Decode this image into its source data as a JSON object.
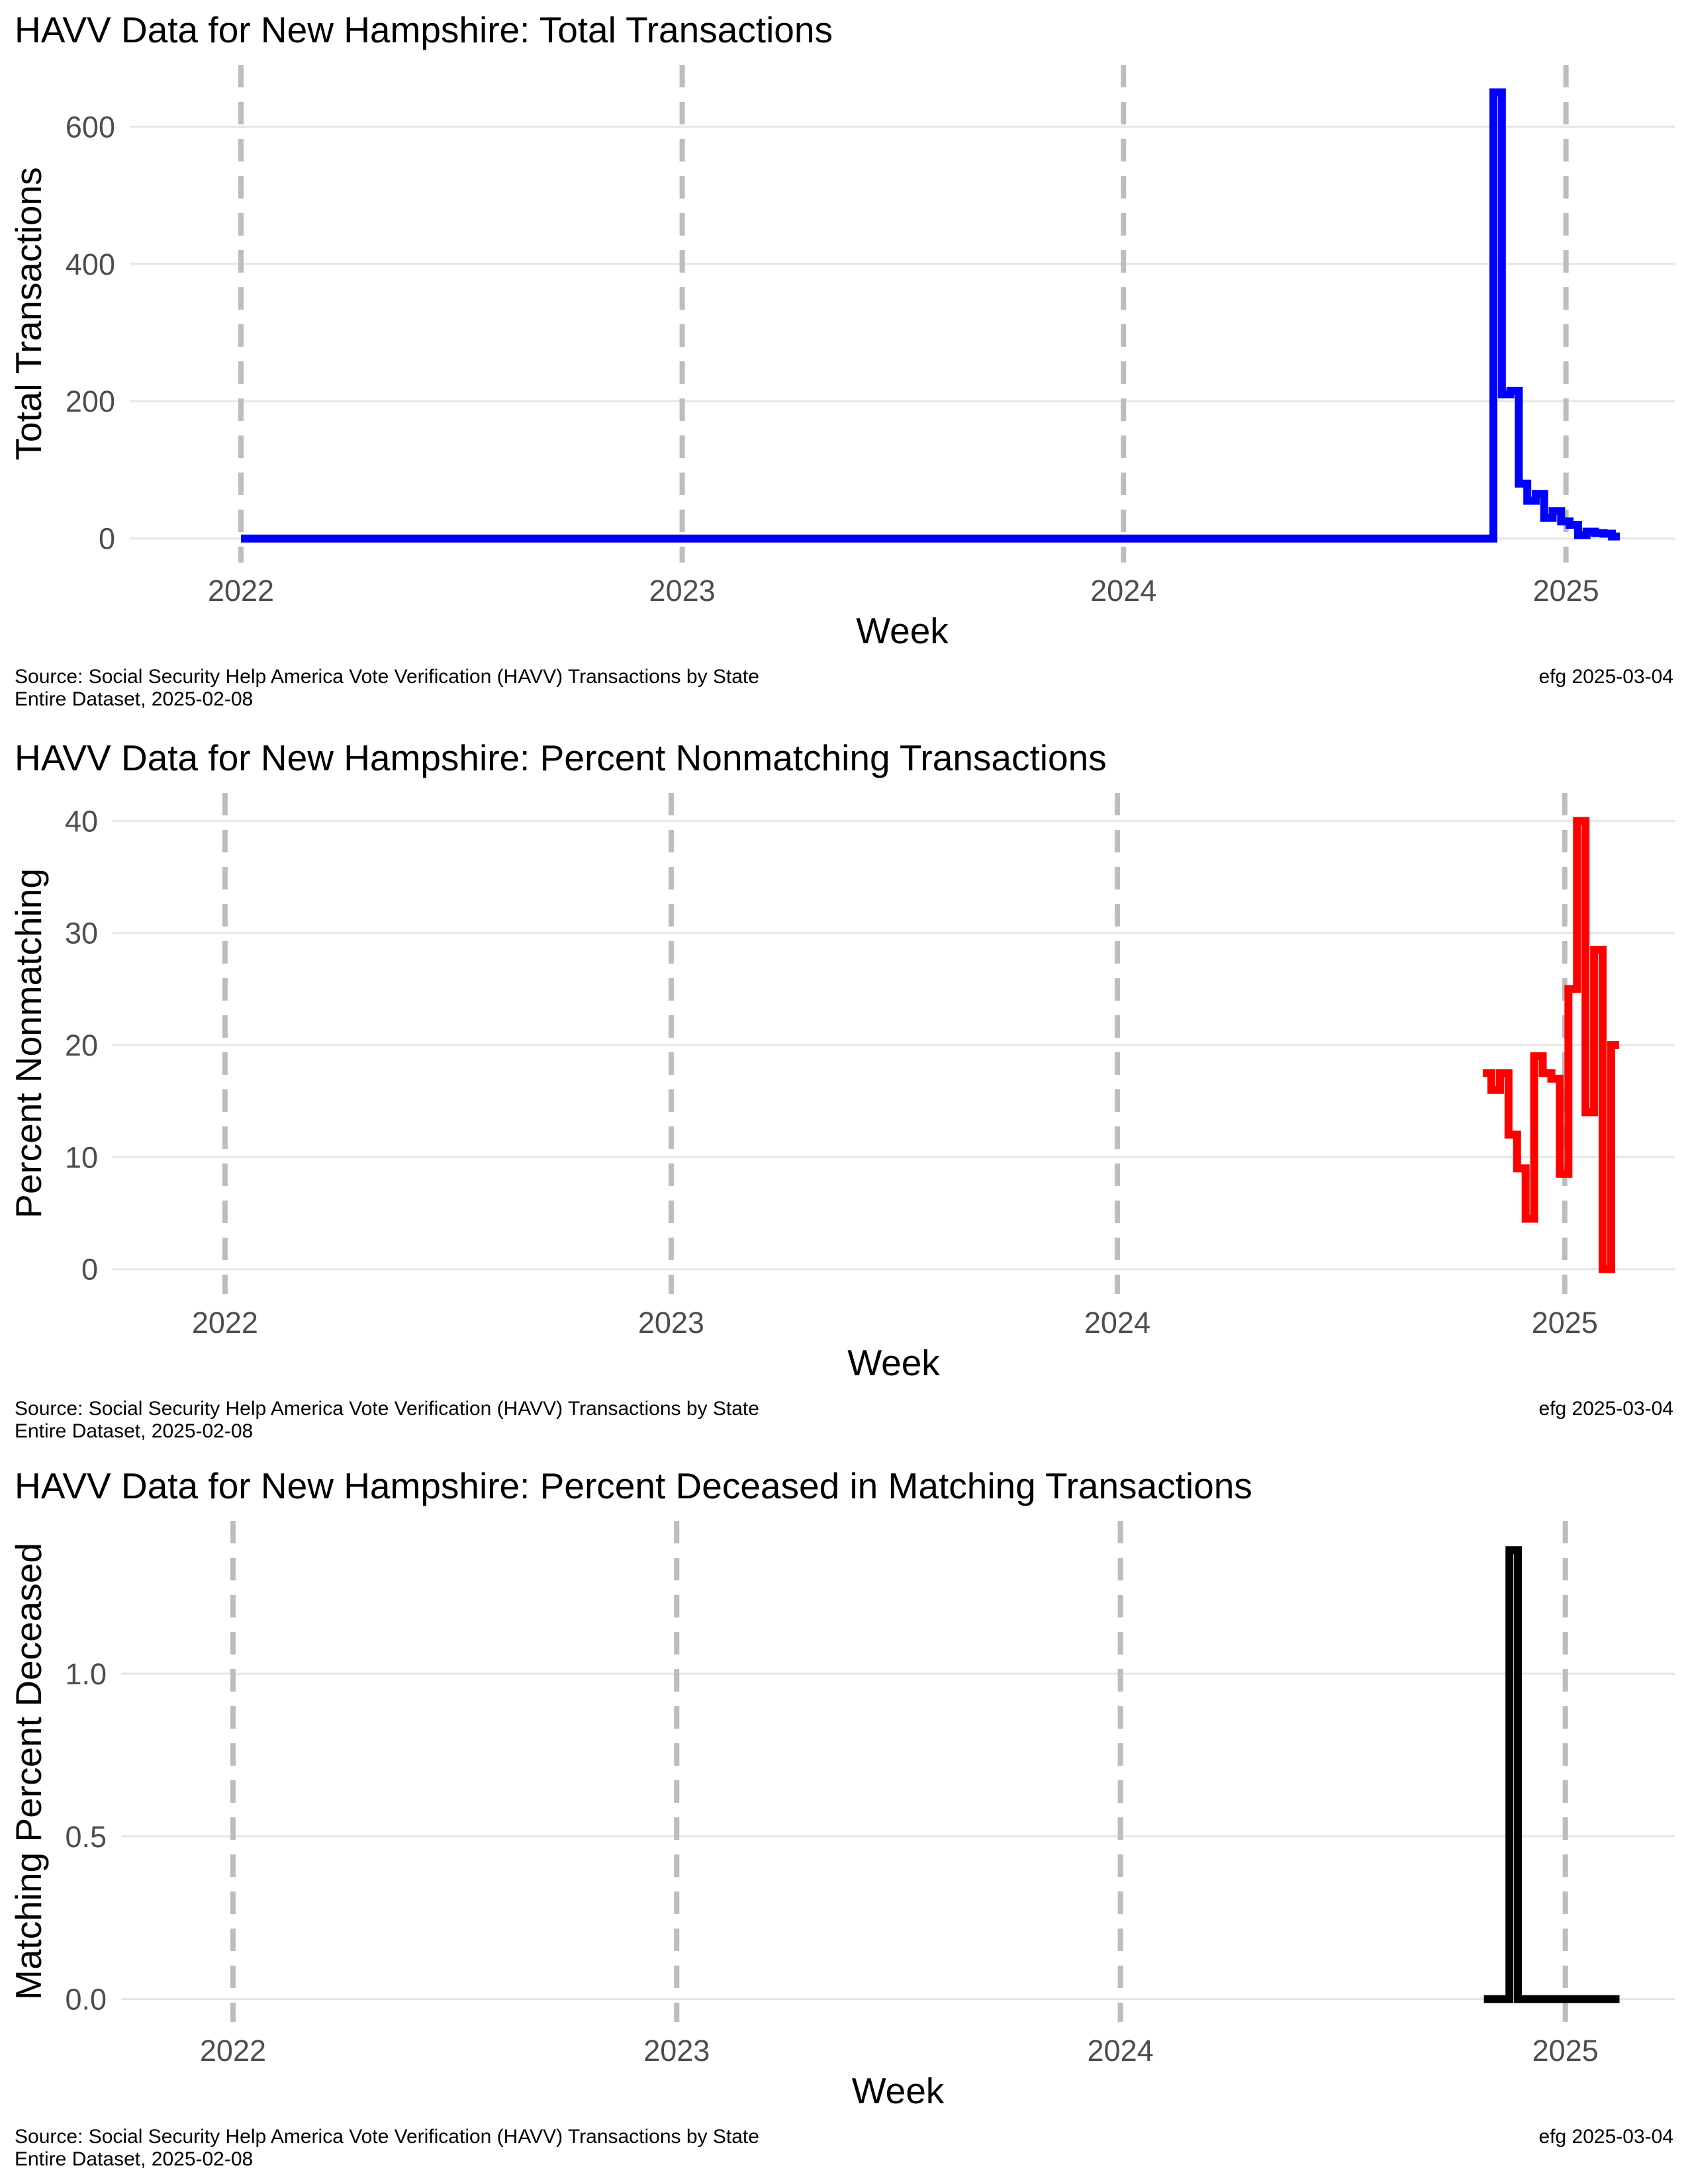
{
  "chart_data": [
    {
      "type": "line",
      "title": "HAVV Data for New Hampshire:  Total Transactions",
      "xlabel": "Week",
      "ylabel": "Total Transactions",
      "xticks": [
        "2022",
        "2023",
        "2024",
        "2025"
      ],
      "yticks": [
        "0",
        "200",
        "400",
        "600"
      ],
      "ytick_values": [
        0,
        200,
        400,
        600
      ],
      "xlim": [
        "2021-10-01",
        "2025-04-01"
      ],
      "ylim": [
        -35,
        690
      ],
      "grid": true,
      "year_markers": [
        "2022-01-01",
        "2023-01-01",
        "2024-01-01",
        "2025-01-01"
      ],
      "color": "#0000ff",
      "step": true,
      "series": [
        {
          "x": [
            "2022-01-01",
            "2024-10-26",
            "2024-11-02",
            "2024-11-09",
            "2024-11-16",
            "2024-11-23",
            "2024-11-30",
            "2024-12-07",
            "2024-12-14",
            "2024-12-21",
            "2024-12-28",
            "2025-01-04",
            "2025-01-11",
            "2025-01-18",
            "2025-01-25",
            "2025-02-01",
            "2025-02-08"
          ],
          "y": [
            0,
            0,
            650,
            210,
            215,
            80,
            55,
            65,
            30,
            40,
            25,
            20,
            5,
            10,
            8,
            7,
            3
          ]
        }
      ],
      "caption_left": [
        "Source:  Social Security Help America Vote Verification (HAVV) Transactions by State",
        "Entire Dataset, 2025-02-08"
      ],
      "caption_right": "efg 2025-03-04"
    },
    {
      "type": "line",
      "title": "HAVV Data for New Hampshire:  Percent Nonmatching Transactions",
      "xlabel": "Week",
      "ylabel": "Percent Nonmatching",
      "xticks": [
        "2022",
        "2023",
        "2024",
        "2025"
      ],
      "yticks": [
        "0",
        "10",
        "20",
        "30",
        "40"
      ],
      "ytick_values": [
        0,
        10,
        20,
        30,
        40
      ],
      "xlim": [
        "2021-10-01",
        "2025-04-01"
      ],
      "ylim": [
        -2.2,
        42.5
      ],
      "grid": true,
      "year_markers": [
        "2022-01-01",
        "2023-01-01",
        "2024-01-01",
        "2025-01-01"
      ],
      "color": "#ff0000",
      "step": true,
      "series": [
        {
          "x": [
            "2024-10-26",
            "2024-11-02",
            "2024-11-09",
            "2024-11-16",
            "2024-11-23",
            "2024-11-30",
            "2024-12-07",
            "2024-12-14",
            "2024-12-21",
            "2024-12-28",
            "2025-01-04",
            "2025-01-11",
            "2025-01-18",
            "2025-01-25",
            "2025-02-01",
            "2025-02-08"
          ],
          "y": [
            17.5,
            16,
            17.5,
            12,
            9,
            4.5,
            19,
            17.5,
            17,
            8.5,
            25,
            40,
            14,
            28.5,
            0,
            20
          ]
        }
      ],
      "caption_left": [
        "Source:  Social Security Help America Vote Verification (HAVV) Transactions by State",
        "Entire Dataset, 2025-02-08"
      ],
      "caption_right": "efg 2025-03-04"
    },
    {
      "type": "line",
      "title": "HAVV Data for New Hampshire:  Percent Deceased in Matching Transactions",
      "xlabel": "Week",
      "ylabel": "Matching Percent Deceased",
      "xticks": [
        "2022",
        "2023",
        "2024",
        "2025"
      ],
      "yticks": [
        "0.0",
        "0.5",
        "1.0"
      ],
      "ytick_values": [
        0,
        0.5,
        1.0
      ],
      "xlim": [
        "2021-10-01",
        "2025-04-01"
      ],
      "ylim": [
        -0.07,
        1.47
      ],
      "grid": true,
      "year_markers": [
        "2022-01-01",
        "2023-01-01",
        "2024-01-01",
        "2025-01-01"
      ],
      "color": "#000000",
      "step": true,
      "series": [
        {
          "x": [
            "2024-10-26",
            "2024-11-02",
            "2024-11-09",
            "2024-11-16",
            "2024-11-23",
            "2024-11-30",
            "2024-12-07",
            "2024-12-14",
            "2024-12-21",
            "2024-12-28",
            "2025-01-04",
            "2025-01-11",
            "2025-01-18",
            "2025-01-25",
            "2025-02-01",
            "2025-02-08"
          ],
          "y": [
            0,
            0,
            0,
            1.38,
            0,
            0,
            0,
            0,
            0,
            0,
            0,
            0,
            0,
            0,
            0,
            0
          ]
        }
      ],
      "caption_left": [
        "Source:  Social Security Help America Vote Verification (HAVV) Transactions by State",
        "Entire Dataset, 2025-02-08"
      ],
      "caption_right": "efg 2025-03-04"
    }
  ]
}
